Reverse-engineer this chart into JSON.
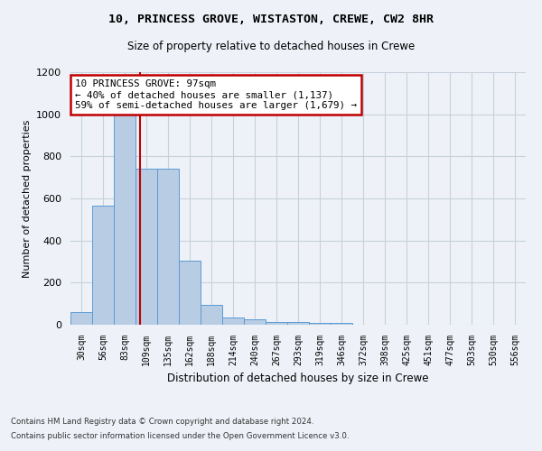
{
  "title1": "10, PRINCESS GROVE, WISTASTON, CREWE, CW2 8HR",
  "title2": "Size of property relative to detached houses in Crewe",
  "xlabel": "Distribution of detached houses by size in Crewe",
  "ylabel": "Number of detached properties",
  "footer1": "Contains HM Land Registry data © Crown copyright and database right 2024.",
  "footer2": "Contains public sector information licensed under the Open Government Licence v3.0.",
  "bin_labels": [
    "30sqm",
    "56sqm",
    "83sqm",
    "109sqm",
    "135sqm",
    "162sqm",
    "188sqm",
    "214sqm",
    "240sqm",
    "267sqm",
    "293sqm",
    "319sqm",
    "346sqm",
    "372sqm",
    "398sqm",
    "425sqm",
    "451sqm",
    "477sqm",
    "503sqm",
    "530sqm",
    "556sqm"
  ],
  "bar_values": [
    60,
    565,
    1000,
    740,
    740,
    305,
    95,
    35,
    25,
    15,
    15,
    10,
    10,
    0,
    0,
    0,
    0,
    0,
    0,
    0,
    0
  ],
  "bar_color": "#b8cce4",
  "bar_edge_color": "#5b9bd5",
  "vline_x": 2.72,
  "vline_color": "#c00000",
  "ylim": [
    0,
    1200
  ],
  "yticks": [
    0,
    200,
    400,
    600,
    800,
    1000,
    1200
  ],
  "annotation_text": "10 PRINCESS GROVE: 97sqm\n← 40% of detached houses are smaller (1,137)\n59% of semi-detached houses are larger (1,679) →",
  "annotation_box_color": "#c00000",
  "bg_color": "#eef2f8",
  "plot_bg_color": "#eef2f8",
  "grid_color": "#c8d0dc"
}
